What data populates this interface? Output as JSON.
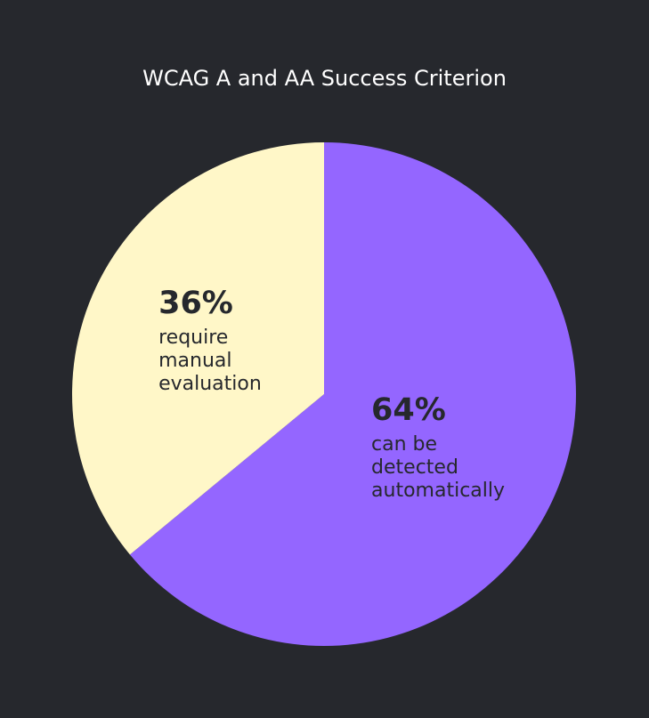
{
  "chart_data": {
    "type": "pie",
    "title": "WCAG A and AA Success Criterion",
    "categories": [
      "can be\ndetected\nautomatically",
      "require\nmanual\nevaluation"
    ],
    "values": [
      64,
      36
    ],
    "value_labels": [
      "64%",
      "36%"
    ],
    "colors": [
      "#9466ff",
      "#fff7c8"
    ]
  }
}
